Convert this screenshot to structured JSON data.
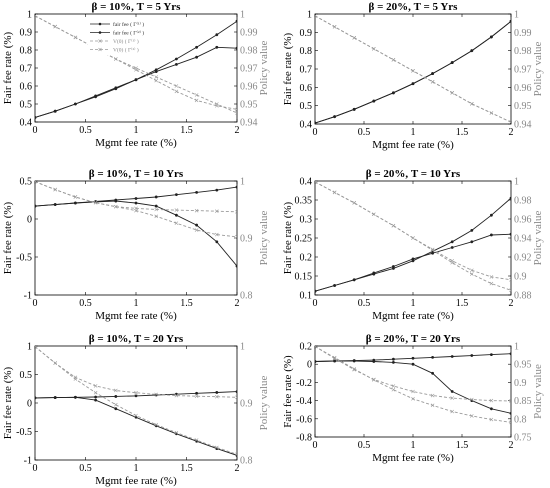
{
  "figure": {
    "legend_bg": "#ffffff"
  },
  "colors": {
    "fee_line": "#222222",
    "policy_line": "#9a9a9a",
    "axis": "#000000",
    "right_axis": "#888888"
  },
  "chart_data": [
    {
      "type": "line",
      "title": "β = 10%, T = 5 Yrs",
      "xlabel": "Mgmt fee rate (%)",
      "ylabel": "Fair fee rate (%)",
      "y2label": "Policy value",
      "xlim": [
        0,
        2
      ],
      "ylim": [
        0.4,
        1.0
      ],
      "y2lim": [
        0.94,
        1.0
      ],
      "xticks": [
        0,
        0.5,
        1,
        1.5,
        2
      ],
      "yticks": [
        0.4,
        0.5,
        0.6,
        0.7,
        0.8,
        0.9,
        1
      ],
      "yticklabels": [
        "0.4",
        "0.5",
        "0.6",
        "0.7",
        "0.8",
        "0.9",
        "1"
      ],
      "y2ticks": [
        0.94,
        0.95,
        0.96,
        0.97,
        0.98,
        0.99,
        1
      ],
      "y2ticklabels": [
        "0.94",
        "0.95",
        "0.96",
        "0.97",
        "0.98",
        "0.99",
        "1"
      ],
      "legend": {
        "placement": "top-center",
        "entries": [
          {
            "label": "fair fee ( Γ⁽¹⁾ )",
            "series": 0
          },
          {
            "label": "fair fee ( Γ⁽²⁾ )",
            "series": 1
          },
          {
            "label": "V(0) ( Γ⁽¹⁾ )",
            "series": 2
          },
          {
            "label": "V(0) ( Γ⁽²⁾ )",
            "series": 3
          }
        ]
      },
      "x": [
        0,
        0.2,
        0.4,
        0.6,
        0.8,
        1.0,
        1.2,
        1.4,
        1.6,
        1.8,
        2.0
      ],
      "series": [
        {
          "axis": "left",
          "style": "solid-dark",
          "values": [
            0.425,
            0.46,
            0.5,
            0.545,
            0.59,
            0.635,
            0.68,
            0.72,
            0.76,
            0.815,
            0.81
          ]
        },
        {
          "axis": "left",
          "style": "solid-dark",
          "values": [
            0.425,
            0.46,
            0.5,
            0.54,
            0.585,
            0.635,
            0.69,
            0.75,
            0.815,
            0.885,
            0.96
          ]
        },
        {
          "axis": "right",
          "style": "dash-light",
          "values": [
            0.999,
            0.993,
            0.987,
            0.981,
            0.975,
            0.969,
            0.963,
            0.957,
            0.952,
            0.949,
            0.947
          ]
        },
        {
          "axis": "right",
          "style": "dash-light",
          "values": [
            0.999,
            0.993,
            0.987,
            0.981,
            0.975,
            0.97,
            0.965,
            0.96,
            0.955,
            0.95,
            0.945
          ]
        }
      ]
    },
    {
      "type": "line",
      "title": "β = 20%, T = 5 Yrs",
      "xlabel": "Mgmt fee rate (%)",
      "ylabel": "Fair fee rate (%)",
      "y2label": "Policy value",
      "xlim": [
        0,
        2
      ],
      "ylim": [
        0.4,
        1.0
      ],
      "y2lim": [
        0.94,
        1.0
      ],
      "xticks": [
        0,
        0.5,
        1,
        1.5,
        2
      ],
      "yticks": [
        0.4,
        0.5,
        0.6,
        0.7,
        0.8,
        0.9,
        1
      ],
      "yticklabels": [
        "0.4",
        "0.5",
        "0.6",
        "0.7",
        "0.8",
        "0.9",
        "1"
      ],
      "y2ticks": [
        0.94,
        0.95,
        0.96,
        0.97,
        0.98,
        0.99,
        1
      ],
      "y2ticklabels": [
        "0.94",
        "0.95",
        "0.96",
        "0.97",
        "0.98",
        "0.99",
        "1"
      ],
      "x": [
        0,
        0.2,
        0.4,
        0.6,
        0.8,
        1.0,
        1.2,
        1.4,
        1.6,
        1.8,
        2.0
      ],
      "series": [
        {
          "axis": "left",
          "style": "solid-dark",
          "values": [
            0.405,
            0.44,
            0.48,
            0.525,
            0.57,
            0.62,
            0.675,
            0.735,
            0.8,
            0.875,
            0.96
          ]
        },
        {
          "axis": "left",
          "style": "solid-dark",
          "values": [
            0.405,
            0.44,
            0.48,
            0.525,
            0.57,
            0.62,
            0.675,
            0.735,
            0.8,
            0.875,
            0.96
          ]
        },
        {
          "axis": "right",
          "style": "dash-light",
          "values": [
            0.999,
            0.993,
            0.987,
            0.981,
            0.975,
            0.969,
            0.963,
            0.957,
            0.951,
            0.946,
            0.941
          ]
        },
        {
          "axis": "right",
          "style": "dash-light",
          "values": [
            0.999,
            0.993,
            0.987,
            0.981,
            0.975,
            0.969,
            0.963,
            0.957,
            0.951,
            0.946,
            0.941
          ]
        }
      ]
    },
    {
      "type": "line",
      "title": "β = 10%, T = 10 Yrs",
      "xlabel": "Mgmt fee rate (%)",
      "ylabel": "Fair fee rate (%)",
      "y2label": "Policy value",
      "xlim": [
        0,
        2
      ],
      "ylim": [
        -1.0,
        0.5
      ],
      "y2lim": [
        0.8,
        1.0
      ],
      "xticks": [
        0,
        0.5,
        1,
        1.5,
        2
      ],
      "yticks": [
        -1,
        -0.5,
        0,
        0.5
      ],
      "yticklabels": [
        "-1",
        "-0.5",
        "0",
        "0.5"
      ],
      "y2ticks": [
        0.8,
        0.9,
        1
      ],
      "y2ticklabels": [
        "0.8",
        "0.9",
        "1"
      ],
      "x": [
        0,
        0.2,
        0.4,
        0.6,
        0.8,
        1.0,
        1.2,
        1.4,
        1.6,
        1.8,
        2.0
      ],
      "series": [
        {
          "axis": "left",
          "style": "solid-dark",
          "values": [
            0.17,
            0.19,
            0.21,
            0.23,
            0.25,
            0.27,
            0.29,
            0.32,
            0.35,
            0.38,
            0.42
          ]
        },
        {
          "axis": "left",
          "style": "solid-dark",
          "values": [
            0.17,
            0.19,
            0.21,
            0.225,
            0.235,
            0.21,
            0.17,
            0.05,
            -0.08,
            -0.3,
            -0.62
          ]
        },
        {
          "axis": "right",
          "style": "dash-light",
          "values": [
            0.999,
            0.985,
            0.972,
            0.962,
            0.955,
            0.952,
            0.95,
            0.949,
            0.948,
            0.947,
            0.946
          ]
        },
        {
          "axis": "right",
          "style": "dash-light",
          "values": [
            0.999,
            0.985,
            0.972,
            0.962,
            0.955,
            0.948,
            0.938,
            0.926,
            0.914,
            0.906,
            0.902
          ]
        }
      ]
    },
    {
      "type": "line",
      "title": "β = 20%, T = 10 Yrs",
      "xlabel": "Mgmt fee rate (%)",
      "ylabel": "Fair fee rate (%)",
      "y2label": "Policy value",
      "xlim": [
        0,
        2
      ],
      "ylim": [
        0.1,
        0.4
      ],
      "y2lim": [
        0.88,
        1.0
      ],
      "xticks": [
        0,
        0.5,
        1,
        1.5,
        2
      ],
      "yticks": [
        0.1,
        0.15,
        0.2,
        0.25,
        0.3,
        0.35,
        0.4
      ],
      "yticklabels": [
        "0.1",
        "0.15",
        "0.2",
        "0.25",
        "0.3",
        "0.35",
        "0.4"
      ],
      "y2ticks": [
        0.88,
        0.9,
        0.92,
        0.94,
        0.96,
        0.98,
        1
      ],
      "y2ticklabels": [
        "0.88",
        "0.9",
        "0.92",
        "0.94",
        "0.96",
        "0.98",
        "1"
      ],
      "x": [
        0,
        0.2,
        0.4,
        0.6,
        0.8,
        1.0,
        1.2,
        1.4,
        1.6,
        1.8,
        2.0
      ],
      "series": [
        {
          "axis": "left",
          "style": "solid-dark",
          "values": [
            0.11,
            0.125,
            0.14,
            0.158,
            0.175,
            0.195,
            0.21,
            0.225,
            0.24,
            0.258,
            0.26
          ]
        },
        {
          "axis": "left",
          "style": "solid-dark",
          "values": [
            0.11,
            0.125,
            0.14,
            0.155,
            0.17,
            0.19,
            0.215,
            0.24,
            0.27,
            0.31,
            0.355
          ]
        },
        {
          "axis": "right",
          "style": "dash-light",
          "values": [
            0.999,
            0.988,
            0.977,
            0.965,
            0.953,
            0.94,
            0.928,
            0.916,
            0.906,
            0.899,
            0.896
          ]
        },
        {
          "axis": "right",
          "style": "dash-light",
          "values": [
            0.999,
            0.988,
            0.977,
            0.965,
            0.953,
            0.94,
            0.927,
            0.914,
            0.902,
            0.892,
            0.885
          ]
        }
      ]
    },
    {
      "type": "line",
      "title": "β = 10%, T = 20 Yrs",
      "xlabel": "Mgmt fee rate (%)",
      "ylabel": "Fair fee rate (%)",
      "y2label": "Policy value",
      "xlim": [
        0,
        2
      ],
      "ylim": [
        -1.0,
        1.0
      ],
      "y2lim": [
        0.8,
        1.0
      ],
      "xticks": [
        0,
        0.5,
        1,
        1.5,
        2
      ],
      "yticks": [
        -1,
        -0.5,
        0,
        0.5,
        1
      ],
      "yticklabels": [
        "-1",
        "-0.5",
        "0",
        "0.5",
        "1"
      ],
      "y2ticks": [
        0.8,
        0.9,
        1
      ],
      "y2ticklabels": [
        "0.8",
        "0.9",
        "1"
      ],
      "x": [
        0,
        0.2,
        0.4,
        0.6,
        0.8,
        1.0,
        1.2,
        1.4,
        1.6,
        1.8,
        2.0
      ],
      "series": [
        {
          "axis": "left",
          "style": "solid-dark",
          "values": [
            0.09,
            0.095,
            0.1,
            0.105,
            0.115,
            0.125,
            0.14,
            0.155,
            0.17,
            0.185,
            0.2
          ]
        },
        {
          "axis": "left",
          "style": "solid-dark",
          "values": [
            0.09,
            0.095,
            0.1,
            0.05,
            -0.1,
            -0.25,
            -0.4,
            -0.54,
            -0.67,
            -0.8,
            -0.92
          ]
        },
        {
          "axis": "right",
          "style": "dash-light",
          "values": [
            0.999,
            0.97,
            0.945,
            0.93,
            0.922,
            0.918,
            0.915,
            0.913,
            0.912,
            0.911,
            0.91
          ]
        },
        {
          "axis": "right",
          "style": "dash-light",
          "values": [
            0.999,
            0.97,
            0.942,
            0.918,
            0.897,
            0.878,
            0.862,
            0.848,
            0.835,
            0.822,
            0.81
          ]
        }
      ]
    },
    {
      "type": "line",
      "title": "β = 20%, T = 20 Yrs",
      "xlabel": "Mgmt fee rate (%)",
      "ylabel": "Fair fee rate (%)",
      "y2label": "Policy value",
      "xlim": [
        0,
        2
      ],
      "ylim": [
        -0.8,
        0.2
      ],
      "y2lim": [
        0.75,
        1.0
      ],
      "xticks": [
        0,
        0.5,
        1,
        1.5,
        2
      ],
      "yticks": [
        -0.8,
        -0.6,
        -0.4,
        -0.2,
        0,
        0.2
      ],
      "yticklabels": [
        "-0.8",
        "-0.6",
        "-0.4",
        "-0.2",
        "0",
        "0.2"
      ],
      "y2ticks": [
        0.75,
        0.8,
        0.85,
        0.9,
        0.95,
        1
      ],
      "y2ticklabels": [
        "0.75",
        "0.8",
        "0.85",
        "0.9",
        "0.95",
        "1"
      ],
      "x": [
        0,
        0.2,
        0.4,
        0.6,
        0.8,
        1.0,
        1.2,
        1.4,
        1.6,
        1.8,
        2.0
      ],
      "series": [
        {
          "axis": "left",
          "style": "solid-dark",
          "values": [
            0.03,
            0.035,
            0.04,
            0.045,
            0.055,
            0.065,
            0.075,
            0.085,
            0.095,
            0.105,
            0.115
          ]
        },
        {
          "axis": "left",
          "style": "solid-dark",
          "values": [
            0.03,
            0.035,
            0.035,
            0.03,
            0.02,
            0.0,
            -0.1,
            -0.3,
            -0.4,
            -0.49,
            -0.54
          ]
        },
        {
          "axis": "right",
          "style": "dash-light",
          "values": [
            0.999,
            0.966,
            0.935,
            0.908,
            0.89,
            0.875,
            0.864,
            0.857,
            0.853,
            0.85,
            0.849
          ]
        },
        {
          "axis": "right",
          "style": "dash-light",
          "values": [
            0.999,
            0.968,
            0.937,
            0.907,
            0.88,
            0.855,
            0.837,
            0.82,
            0.808,
            0.798,
            0.79
          ]
        }
      ]
    }
  ]
}
